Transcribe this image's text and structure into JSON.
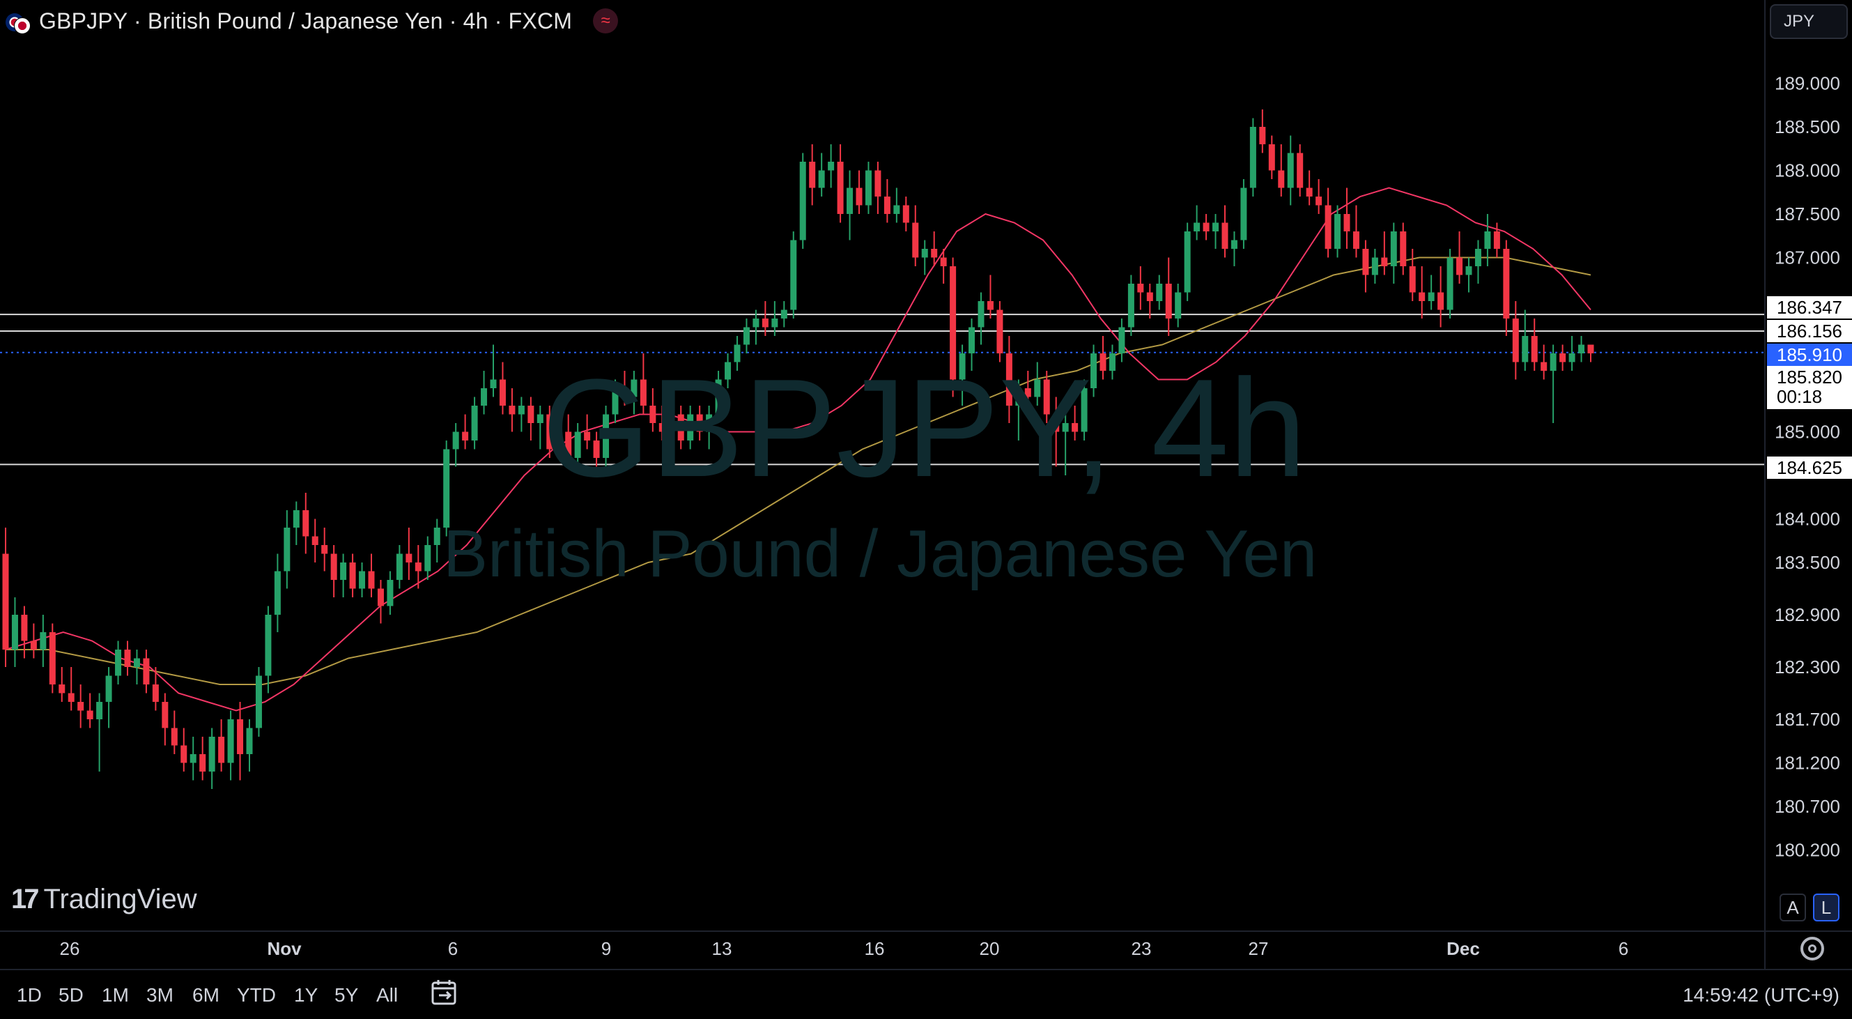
{
  "header": {
    "title": "GBPJPY · British Pound / Japanese Yen · 4h · FXCM",
    "currency": "JPY"
  },
  "watermark": {
    "symbol": "GBPJPY, 4h",
    "description": "British Pound / Japanese Yen"
  },
  "brand": {
    "name": "TradingView",
    "mark": "17"
  },
  "price_labels": {
    "line1": "186.347",
    "line2": "186.156",
    "last": "185.910",
    "countdown_price": "185.820",
    "countdown_time": "00:18",
    "line3": "184.625"
  },
  "scale_modes": {
    "auto": "A",
    "log": "L"
  },
  "bottom_bar": {
    "timeframes": [
      "1D",
      "5D",
      "1M",
      "3M",
      "6M",
      "YTD",
      "1Y",
      "5Y",
      "All"
    ],
    "time": "14:59:42 (UTC+9)"
  },
  "colors": {
    "up": "#26a269",
    "down": "#f23645",
    "ma_fast": "#f23665",
    "ma_slow": "#b39a44",
    "last_price_bg": "#2962ff"
  },
  "chart_data": {
    "type": "candlestick",
    "symbol": "GBPJPY",
    "interval": "4h",
    "y_ticks": [
      "189.000",
      "188.500",
      "188.000",
      "187.500",
      "187.000",
      "185.000",
      "184.000",
      "183.500",
      "182.900",
      "182.300",
      "181.700",
      "181.200",
      "180.700",
      "180.200"
    ],
    "x_ticks": [
      "26",
      "Nov",
      "6",
      "9",
      "13",
      "16",
      "20",
      "23",
      "27",
      "Dec",
      "6"
    ],
    "horizontal_lines": [
      186.347,
      186.156,
      184.625
    ],
    "last_price": 185.91,
    "candles": [
      [
        183.6,
        183.9,
        182.3,
        182.5
      ],
      [
        182.5,
        183.1,
        182.3,
        182.9
      ],
      [
        182.9,
        183.0,
        182.4,
        182.6
      ],
      [
        182.6,
        182.8,
        182.4,
        182.5
      ],
      [
        182.5,
        182.9,
        182.3,
        182.7
      ],
      [
        182.7,
        182.8,
        182.0,
        182.1
      ],
      [
        182.1,
        182.3,
        181.9,
        182.0
      ],
      [
        182.0,
        182.3,
        181.8,
        181.9
      ],
      [
        181.9,
        182.1,
        181.6,
        181.8
      ],
      [
        181.8,
        182.0,
        181.6,
        181.7
      ],
      [
        181.7,
        182.0,
        181.1,
        181.9
      ],
      [
        181.9,
        182.3,
        181.6,
        182.2
      ],
      [
        182.2,
        182.6,
        182.1,
        182.5
      ],
      [
        182.5,
        182.6,
        182.2,
        182.3
      ],
      [
        182.3,
        182.5,
        182.1,
        182.4
      ],
      [
        182.4,
        182.5,
        182.0,
        182.1
      ],
      [
        182.1,
        182.3,
        181.8,
        181.9
      ],
      [
        181.9,
        182.0,
        181.4,
        181.6
      ],
      [
        181.6,
        181.8,
        181.3,
        181.4
      ],
      [
        181.4,
        181.6,
        181.1,
        181.2
      ],
      [
        181.2,
        181.5,
        181.0,
        181.3
      ],
      [
        181.3,
        181.5,
        181.0,
        181.1
      ],
      [
        181.1,
        181.6,
        180.9,
        181.5
      ],
      [
        181.5,
        181.7,
        181.1,
        181.2
      ],
      [
        181.2,
        181.8,
        181.0,
        181.7
      ],
      [
        181.7,
        181.9,
        181.0,
        181.3
      ],
      [
        181.3,
        181.7,
        181.1,
        181.6
      ],
      [
        181.6,
        182.3,
        181.5,
        182.2
      ],
      [
        182.2,
        183.0,
        182.0,
        182.9
      ],
      [
        182.9,
        183.6,
        182.7,
        183.4
      ],
      [
        183.4,
        184.1,
        183.2,
        183.9
      ],
      [
        183.9,
        184.2,
        183.7,
        184.1
      ],
      [
        184.1,
        184.3,
        183.6,
        183.8
      ],
      [
        183.8,
        184.0,
        183.5,
        183.7
      ],
      [
        183.7,
        183.9,
        183.4,
        183.6
      ],
      [
        183.6,
        183.7,
        183.1,
        183.3
      ],
      [
        183.3,
        183.6,
        183.1,
        183.5
      ],
      [
        183.5,
        183.6,
        183.1,
        183.2
      ],
      [
        183.2,
        183.5,
        183.1,
        183.4
      ],
      [
        183.4,
        183.6,
        183.1,
        183.2
      ],
      [
        183.2,
        183.3,
        182.8,
        183.0
      ],
      [
        183.0,
        183.4,
        182.9,
        183.3
      ],
      [
        183.3,
        183.7,
        183.2,
        183.6
      ],
      [
        183.6,
        183.9,
        183.3,
        183.5
      ],
      [
        183.5,
        183.7,
        183.2,
        183.4
      ],
      [
        183.4,
        183.8,
        183.3,
        183.7
      ],
      [
        183.7,
        184.0,
        183.5,
        183.9
      ],
      [
        183.9,
        184.9,
        183.8,
        184.8
      ],
      [
        184.8,
        185.1,
        184.6,
        185.0
      ],
      [
        185.0,
        185.2,
        184.8,
        184.9
      ],
      [
        184.9,
        185.4,
        184.8,
        185.3
      ],
      [
        185.3,
        185.7,
        185.2,
        185.5
      ],
      [
        185.5,
        186.0,
        185.4,
        185.6
      ],
      [
        185.6,
        185.8,
        185.2,
        185.3
      ],
      [
        185.3,
        185.5,
        185.0,
        185.2
      ],
      [
        185.2,
        185.4,
        185.0,
        185.3
      ],
      [
        185.3,
        185.4,
        184.9,
        185.1
      ],
      [
        185.1,
        185.3,
        184.8,
        185.2
      ],
      [
        185.2,
        185.3,
        184.7,
        184.8
      ],
      [
        184.8,
        185.1,
        184.7,
        185.0
      ],
      [
        185.0,
        185.2,
        184.6,
        184.7
      ],
      [
        184.7,
        185.1,
        184.6,
        185.0
      ],
      [
        185.0,
        185.2,
        184.8,
        184.9
      ],
      [
        184.9,
        185.0,
        184.6,
        184.7
      ],
      [
        184.7,
        185.3,
        184.6,
        185.2
      ],
      [
        185.2,
        185.6,
        185.1,
        185.5
      ],
      [
        185.5,
        185.7,
        185.3,
        185.4
      ],
      [
        185.4,
        185.7,
        185.2,
        185.6
      ],
      [
        185.6,
        185.9,
        185.2,
        185.3
      ],
      [
        185.3,
        185.5,
        185.0,
        185.1
      ],
      [
        185.1,
        185.3,
        184.9,
        185.0
      ],
      [
        185.0,
        185.3,
        184.9,
        185.2
      ],
      [
        185.2,
        185.3,
        184.8,
        184.9
      ],
      [
        184.9,
        185.3,
        184.8,
        185.2
      ],
      [
        185.2,
        185.3,
        184.9,
        185.0
      ],
      [
        185.0,
        185.3,
        184.8,
        185.2
      ],
      [
        185.2,
        185.7,
        185.1,
        185.6
      ],
      [
        185.6,
        185.9,
        185.5,
        185.8
      ],
      [
        185.8,
        186.1,
        185.7,
        186.0
      ],
      [
        186.0,
        186.3,
        185.9,
        186.2
      ],
      [
        186.2,
        186.4,
        186.0,
        186.3
      ],
      [
        186.3,
        186.5,
        186.1,
        186.2
      ],
      [
        186.2,
        186.5,
        186.1,
        186.3
      ],
      [
        186.3,
        186.5,
        186.2,
        186.4
      ],
      [
        186.4,
        187.3,
        186.3,
        187.2
      ],
      [
        187.2,
        188.2,
        187.1,
        188.1
      ],
      [
        188.1,
        188.3,
        187.6,
        187.8
      ],
      [
        187.8,
        188.2,
        187.7,
        188.0
      ],
      [
        188.0,
        188.3,
        187.8,
        188.1
      ],
      [
        188.1,
        188.3,
        187.4,
        187.5
      ],
      [
        187.5,
        188.0,
        187.2,
        187.8
      ],
      [
        187.8,
        188.0,
        187.5,
        187.6
      ],
      [
        187.6,
        188.1,
        187.5,
        188.0
      ],
      [
        188.0,
        188.1,
        187.5,
        187.7
      ],
      [
        187.7,
        187.9,
        187.4,
        187.5
      ],
      [
        187.5,
        187.8,
        187.4,
        187.6
      ],
      [
        187.6,
        187.7,
        187.3,
        187.4
      ],
      [
        187.4,
        187.6,
        186.9,
        187.0
      ],
      [
        187.0,
        187.2,
        186.8,
        187.1
      ],
      [
        187.1,
        187.3,
        186.9,
        187.0
      ],
      [
        187.0,
        187.1,
        186.7,
        186.9
      ],
      [
        186.9,
        187.0,
        185.4,
        185.6
      ],
      [
        185.6,
        186.0,
        185.3,
        185.9
      ],
      [
        185.9,
        186.3,
        185.7,
        186.2
      ],
      [
        186.2,
        186.6,
        186.0,
        186.5
      ],
      [
        186.5,
        186.8,
        186.3,
        186.4
      ],
      [
        186.4,
        186.5,
        185.8,
        185.9
      ],
      [
        185.9,
        186.1,
        185.1,
        185.3
      ],
      [
        185.3,
        185.6,
        184.9,
        185.5
      ],
      [
        185.5,
        185.7,
        185.2,
        185.4
      ],
      [
        185.4,
        185.8,
        185.3,
        185.6
      ],
      [
        185.6,
        185.7,
        185.1,
        185.2
      ],
      [
        185.2,
        185.4,
        184.6,
        185.0
      ],
      [
        185.0,
        185.3,
        184.5,
        185.1
      ],
      [
        185.1,
        185.3,
        184.9,
        185.0
      ],
      [
        185.0,
        185.6,
        184.9,
        185.5
      ],
      [
        185.5,
        186.0,
        185.4,
        185.9
      ],
      [
        185.9,
        186.1,
        185.6,
        185.7
      ],
      [
        185.7,
        186.0,
        185.6,
        185.9
      ],
      [
        185.9,
        186.3,
        185.8,
        186.2
      ],
      [
        186.2,
        186.8,
        186.1,
        186.7
      ],
      [
        186.7,
        186.9,
        186.4,
        186.6
      ],
      [
        186.6,
        186.7,
        186.3,
        186.5
      ],
      [
        186.5,
        186.8,
        186.4,
        186.7
      ],
      [
        186.7,
        187.0,
        186.1,
        186.3
      ],
      [
        186.3,
        186.7,
        186.2,
        186.6
      ],
      [
        186.6,
        187.4,
        186.5,
        187.3
      ],
      [
        187.3,
        187.6,
        187.2,
        187.4
      ],
      [
        187.4,
        187.5,
        187.2,
        187.3
      ],
      [
        187.3,
        187.5,
        187.1,
        187.4
      ],
      [
        187.4,
        187.6,
        187.0,
        187.1
      ],
      [
        187.1,
        187.3,
        186.9,
        187.2
      ],
      [
        187.2,
        187.9,
        187.1,
        187.8
      ],
      [
        187.8,
        188.6,
        187.7,
        188.5
      ],
      [
        188.5,
        188.7,
        188.2,
        188.3
      ],
      [
        188.3,
        188.4,
        187.9,
        188.0
      ],
      [
        188.0,
        188.3,
        187.7,
        187.8
      ],
      [
        187.8,
        188.4,
        187.6,
        188.2
      ],
      [
        188.2,
        188.3,
        187.7,
        187.8
      ],
      [
        187.8,
        188.0,
        187.6,
        187.7
      ],
      [
        187.7,
        187.9,
        187.5,
        187.6
      ],
      [
        187.6,
        187.8,
        187.0,
        187.1
      ],
      [
        187.1,
        187.6,
        187.0,
        187.5
      ],
      [
        187.5,
        187.8,
        187.1,
        187.3
      ],
      [
        187.3,
        187.6,
        187.0,
        187.1
      ],
      [
        187.1,
        187.2,
        186.6,
        186.8
      ],
      [
        186.8,
        187.1,
        186.7,
        187.0
      ],
      [
        187.0,
        187.3,
        186.8,
        186.9
      ],
      [
        186.9,
        187.4,
        186.7,
        187.3
      ],
      [
        187.3,
        187.4,
        186.8,
        186.9
      ],
      [
        186.9,
        187.1,
        186.5,
        186.6
      ],
      [
        186.6,
        186.9,
        186.3,
        186.5
      ],
      [
        186.5,
        186.8,
        186.4,
        186.6
      ],
      [
        186.6,
        186.9,
        186.2,
        186.4
      ],
      [
        186.4,
        187.1,
        186.3,
        187.0
      ],
      [
        187.0,
        187.3,
        186.7,
        186.8
      ],
      [
        186.8,
        187.0,
        186.6,
        186.9
      ],
      [
        186.9,
        187.2,
        186.7,
        187.1
      ],
      [
        187.1,
        187.5,
        186.9,
        187.3
      ],
      [
        187.3,
        187.4,
        187.0,
        187.1
      ],
      [
        187.1,
        187.2,
        186.1,
        186.3
      ],
      [
        186.3,
        186.5,
        185.6,
        185.8
      ],
      [
        185.8,
        186.4,
        185.7,
        186.1
      ],
      [
        186.1,
        186.3,
        185.7,
        185.8
      ],
      [
        185.8,
        186.0,
        185.6,
        185.7
      ],
      [
        185.7,
        186.0,
        185.1,
        185.9
      ],
      [
        185.9,
        186.0,
        185.7,
        185.8
      ],
      [
        185.8,
        186.1,
        185.7,
        185.9
      ],
      [
        185.9,
        186.1,
        185.8,
        186.0
      ],
      [
        186.0,
        186.0,
        185.8,
        185.9
      ]
    ],
    "ma_fast": [
      182.5,
      182.6,
      182.7,
      182.6,
      182.4,
      182.3,
      182.0,
      181.9,
      181.8,
      181.9,
      182.1,
      182.4,
      182.7,
      183.0,
      183.2,
      183.4,
      183.7,
      184.1,
      184.5,
      184.8,
      185.0,
      185.1,
      185.2,
      185.2,
      185.1,
      185.0,
      185.0,
      185.0,
      185.1,
      185.3,
      185.6,
      186.2,
      186.8,
      187.3,
      187.5,
      187.4,
      187.2,
      186.8,
      186.3,
      185.9,
      185.6,
      185.6,
      185.8,
      186.1,
      186.5,
      187.0,
      187.5,
      187.7,
      187.8,
      187.7,
      187.6,
      187.4,
      187.3,
      187.1,
      186.8,
      186.4
    ],
    "ma_slow": [
      182.5,
      182.5,
      182.4,
      182.3,
      182.2,
      182.1,
      182.1,
      182.2,
      182.4,
      182.5,
      182.6,
      182.7,
      182.9,
      183.1,
      183.3,
      183.5,
      183.6,
      183.9,
      184.2,
      184.5,
      184.8,
      185.0,
      185.2,
      185.4,
      185.6,
      185.7,
      185.9,
      186.0,
      186.2,
      186.4,
      186.6,
      186.8,
      186.9,
      187.0,
      187.0,
      187.0,
      186.9,
      186.8
    ]
  }
}
